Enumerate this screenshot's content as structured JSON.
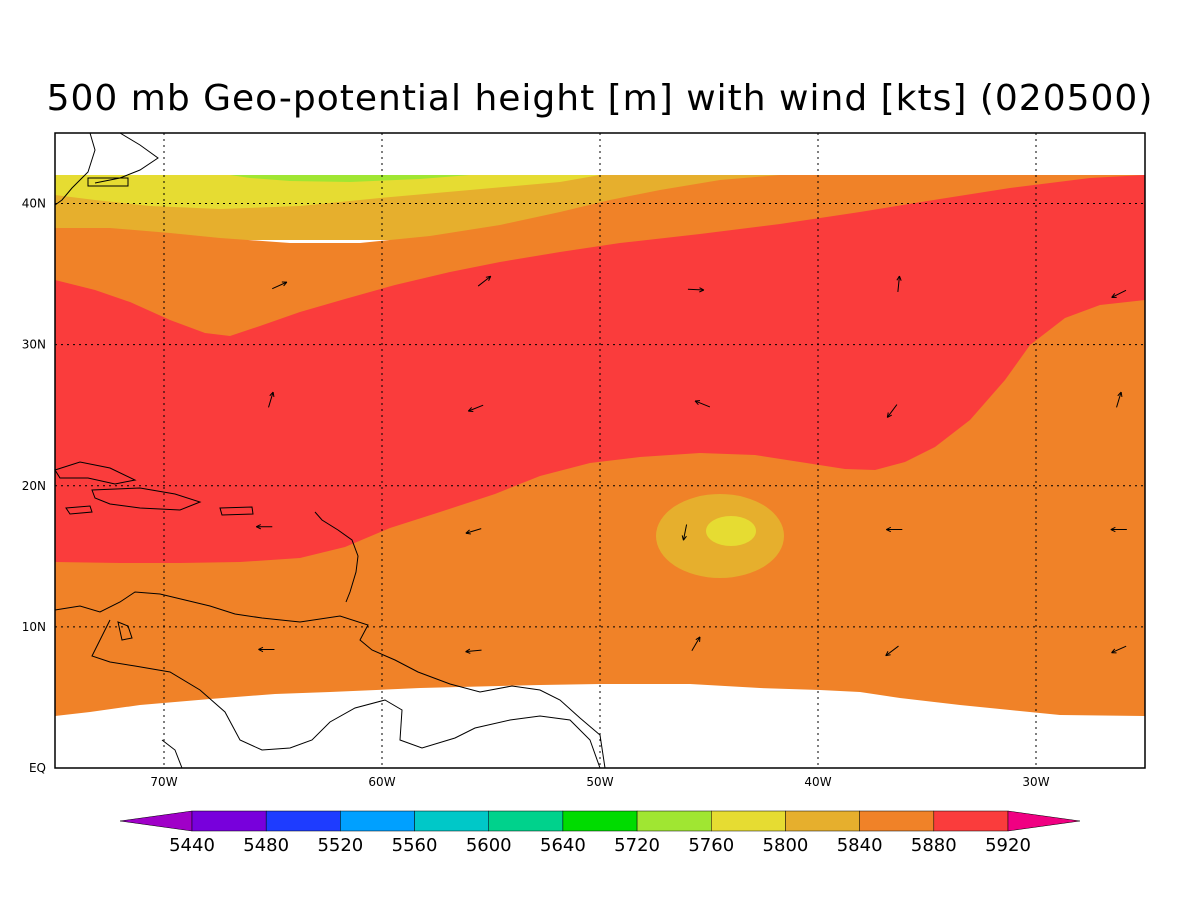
{
  "title": "500 mb Geo-potential height [m] with wind [kts] (020500)",
  "axes": {
    "lon_labels": [
      "70W",
      "60W",
      "50W",
      "40W",
      "30W"
    ],
    "lat_labels": [
      "EQ",
      "10N",
      "20N",
      "30N",
      "40N"
    ],
    "lon_values": [
      -70,
      -60,
      -50,
      -40,
      -30
    ],
    "lat_values": [
      0,
      10,
      20,
      30,
      40
    ],
    "lon_range": [
      -75,
      -25
    ],
    "lat_range": [
      0,
      45
    ],
    "grid": true
  },
  "colorbar": {
    "levels": [
      "5440",
      "5480",
      "5520",
      "5560",
      "5600",
      "5640",
      "5720",
      "5760",
      "5800",
      "5840",
      "5880",
      "5920"
    ],
    "colors": [
      "#a000c8",
      "#7800dc",
      "#1e3cff",
      "#00a0ff",
      "#00c8c8",
      "#00d28c",
      "#00dc00",
      "#a0e632",
      "#e6dc32",
      "#e6af2d",
      "#f08228",
      "#fa3c3c",
      "#f00082"
    ]
  },
  "fields": {
    "height_colors": {
      "5760": "#a0e632",
      "5800": "#e6dc32",
      "5840": "#e6af2d",
      "5880": "#f08228",
      "5920": "#fa3c3c"
    }
  },
  "wind_vectors": [
    {
      "lon": -64.7,
      "lat": 34.2,
      "u": 1,
      "v": 0.45
    },
    {
      "lon": -55.3,
      "lat": 34.5,
      "u": 0.9,
      "v": 0.7
    },
    {
      "lon": -45.6,
      "lat": 33.9,
      "u": 1,
      "v": -0.05
    },
    {
      "lon": -36.3,
      "lat": 34.3,
      "u": 0.1,
      "v": 1
    },
    {
      "lon": -26.2,
      "lat": 33.6,
      "u": -1,
      "v": -0.5
    },
    {
      "lon": -65.1,
      "lat": 26.1,
      "u": 0.3,
      "v": 1
    },
    {
      "lon": -55.7,
      "lat": 25.5,
      "u": -1,
      "v": -0.4
    },
    {
      "lon": -45.3,
      "lat": 25.8,
      "u": -1,
      "v": 0.4
    },
    {
      "lon": -36.6,
      "lat": 25.3,
      "u": -0.6,
      "v": -0.8
    },
    {
      "lon": -26.2,
      "lat": 26.1,
      "u": 0.3,
      "v": 1
    },
    {
      "lon": -65.4,
      "lat": 17.1,
      "u": -1,
      "v": 0
    },
    {
      "lon": -55.8,
      "lat": 16.8,
      "u": -1,
      "v": -0.3
    },
    {
      "lon": -46.1,
      "lat": 16.7,
      "u": -0.2,
      "v": -1
    },
    {
      "lon": -36.5,
      "lat": 16.9,
      "u": -1,
      "v": 0
    },
    {
      "lon": -26.2,
      "lat": 16.9,
      "u": -1,
      "v": 0
    },
    {
      "lon": -65.3,
      "lat": 8.4,
      "u": -1,
      "v": 0
    },
    {
      "lon": -55.8,
      "lat": 8.3,
      "u": -1,
      "v": -0.1
    },
    {
      "lon": -45.6,
      "lat": 8.8,
      "u": 0.5,
      "v": 0.85
    },
    {
      "lon": -36.6,
      "lat": 8.3,
      "u": -0.8,
      "v": -0.6
    },
    {
      "lon": -26.2,
      "lat": 8.4,
      "u": -0.9,
      "v": -0.4
    }
  ]
}
